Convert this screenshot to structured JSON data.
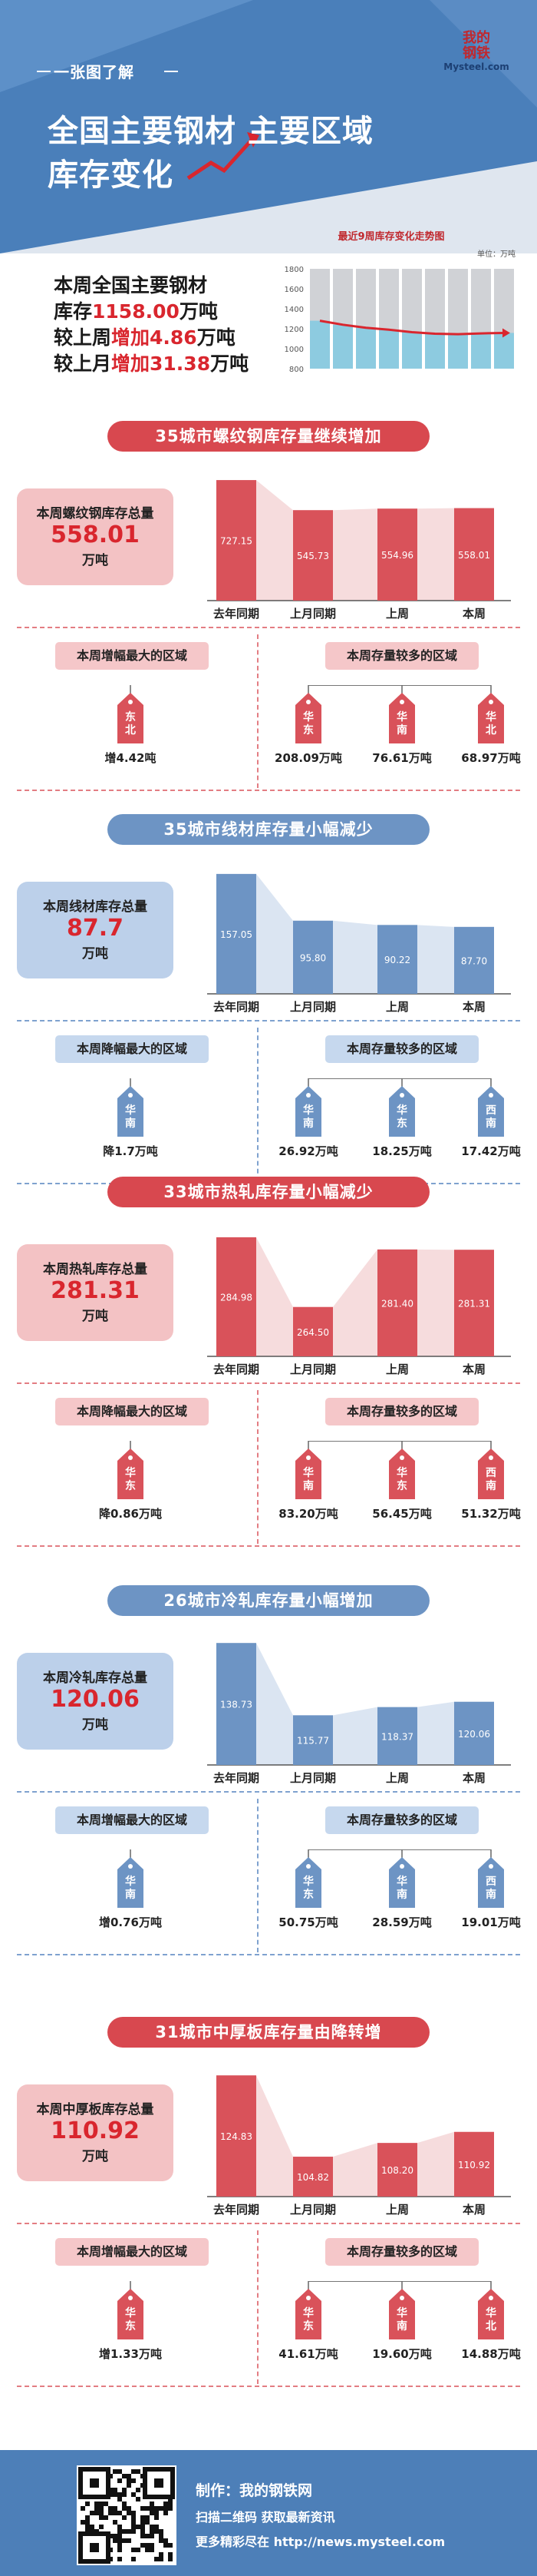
{
  "header": {
    "kicker": "一张图了解",
    "title_line1": "全国主要钢材 主要区域",
    "title_line2": "库存变化",
    "logo_cn_1": "我的",
    "logo_cn_2": "钢铁",
    "logo_en": "Mysteel.com"
  },
  "summary": {
    "line1": "本周全国主要钢材",
    "line2_prefix": "库存",
    "line2_value": "1158.00",
    "line2_suffix": "万吨",
    "line3_prefix": "较上周",
    "line3_value": "增加4.86",
    "line3_suffix": "万吨",
    "line4_prefix": "较上月",
    "line4_value": "增加31.38",
    "line4_suffix": "万吨"
  },
  "mini_chart": {
    "title": "最近9周库存变化走势图",
    "unit": "单位：万吨",
    "chart_data": {
      "type": "bar",
      "title": "最近9周库存变化走势图",
      "ylabel": "单位：万吨",
      "ylim": [
        800,
        1800
      ],
      "yticks": [
        "1800",
        "1600",
        "1400",
        "1200",
        "1000",
        "800"
      ],
      "values": [
        1280,
        1240,
        1210,
        1190,
        1165,
        1150,
        1145,
        1153,
        1158
      ],
      "line_values": [
        1280,
        1240,
        1210,
        1190,
        1165,
        1150,
        1145,
        1153,
        1158
      ],
      "colors": {
        "bar": "#8dcbe0",
        "bar_bg": "#d0d2d6",
        "line": "#d9262e"
      }
    }
  },
  "sections": [
    {
      "theme": "red",
      "title": "35城市螺纹钢库存量继续增加",
      "total_label": "本周螺纹钢库存总量",
      "total_value": "558.01",
      "total_unit": "万吨",
      "chart_data": {
        "type": "bar",
        "categories": [
          "去年同期",
          "上月同期",
          "上周",
          "本周"
        ],
        "values": [
          727.15,
          545.73,
          554.96,
          558.01
        ],
        "labels": [
          "727.15",
          "545.73",
          "554.96",
          "558.01"
        ],
        "ylim": [
          0,
          760
        ],
        "colors": {
          "bar": "#d9525a",
          "band": "#f6dcdd"
        }
      },
      "left_title": "本周增幅最大的区域",
      "left_tag": {
        "text1": "东",
        "text2": "北",
        "value": "增4.42吨"
      },
      "right_title": "本周存量较多的区域",
      "right_tags": [
        {
          "text1": "华",
          "text2": "东",
          "value": "208.09万吨"
        },
        {
          "text1": "华",
          "text2": "南",
          "value": "76.61万吨"
        },
        {
          "text1": "华",
          "text2": "北",
          "value": "68.97万吨"
        }
      ]
    },
    {
      "theme": "blue",
      "title": "35城市线材库存量小幅减少",
      "total_label": "本周线材库存总量",
      "total_value": "87.7",
      "total_unit": "万吨",
      "chart_data": {
        "type": "bar",
        "categories": [
          "去年同期",
          "上月同期",
          "上周",
          "本周"
        ],
        "values": [
          157.05,
          95.8,
          90.22,
          87.7
        ],
        "labels": [
          "157.05",
          "95.80",
          "90.22",
          "87.70"
        ],
        "ylim": [
          0,
          165
        ],
        "colors": {
          "bar": "#6d94c4",
          "band": "#dbe5f2"
        }
      },
      "left_title": "本周降幅最大的区域",
      "left_tag": {
        "text1": "华",
        "text2": "南",
        "value": "降1.7万吨"
      },
      "right_title": "本周存量较多的区域",
      "right_tags": [
        {
          "text1": "华",
          "text2": "南",
          "value": "26.92万吨"
        },
        {
          "text1": "华",
          "text2": "东",
          "value": "18.25万吨"
        },
        {
          "text1": "西",
          "text2": "南",
          "value": "17.42万吨"
        }
      ]
    },
    {
      "theme": "red",
      "title": "33城市热轧库存量小幅减少",
      "total_label": "本周热轧库存总量",
      "total_value": "281.31",
      "total_unit": "万吨",
      "chart_data": {
        "type": "bar",
        "categories": [
          "去年同期",
          "上月同期",
          "上周",
          "本周"
        ],
        "values": [
          284.98,
          264.5,
          281.4,
          281.31
        ],
        "labels": [
          "284.98",
          "264.50",
          "281.40",
          "281.31"
        ],
        "ylim": [
          250,
          287
        ],
        "colors": {
          "bar": "#d9525a",
          "band": "#f6dcdd"
        }
      },
      "left_title": "本周降幅最大的区域",
      "left_tag": {
        "text1": "华",
        "text2": "东",
        "value": "降0.86万吨"
      },
      "right_title": "本周存量较多的区域",
      "right_tags": [
        {
          "text1": "华",
          "text2": "南",
          "value": "83.20万吨"
        },
        {
          "text1": "华",
          "text2": "东",
          "value": "56.45万吨"
        },
        {
          "text1": "西",
          "text2": "南",
          "value": "51.32万吨"
        }
      ]
    },
    {
      "theme": "blue",
      "title": "26城市冷轧库存量小幅增加",
      "total_label": "本周冷轧库存总量",
      "total_value": "120.06",
      "total_unit": "万吨",
      "chart_data": {
        "type": "bar",
        "categories": [
          "去年同期",
          "上月同期",
          "上周",
          "本周"
        ],
        "values": [
          138.73,
          115.77,
          118.37,
          120.06
        ],
        "labels": [
          "138.73",
          "115.77",
          "118.37",
          "120.06"
        ],
        "ylim": [
          100,
          140
        ],
        "colors": {
          "bar": "#6d94c4",
          "band": "#dbe5f2"
        }
      },
      "left_title": "本周增幅最大的区域",
      "left_tag": {
        "text1": "华",
        "text2": "南",
        "value": "增0.76万吨"
      },
      "right_title": "本周存量较多的区域",
      "right_tags": [
        {
          "text1": "华",
          "text2": "东",
          "value": "50.75万吨"
        },
        {
          "text1": "华",
          "text2": "南",
          "value": "28.59万吨"
        },
        {
          "text1": "西",
          "text2": "南",
          "value": "19.01万吨"
        }
      ]
    },
    {
      "theme": "red",
      "title": "31城市中厚板库存量由降转增",
      "total_label": "本周中厚板库存总量",
      "total_value": "110.92",
      "total_unit": "万吨",
      "chart_data": {
        "type": "bar",
        "categories": [
          "去年同期",
          "上月同期",
          "上周",
          "本周"
        ],
        "values": [
          124.83,
          104.82,
          108.2,
          110.92
        ],
        "labels": [
          "124.83",
          "104.82",
          "108.20",
          "110.92"
        ],
        "ylim": [
          95,
          126
        ],
        "colors": {
          "bar": "#d9525a",
          "band": "#f6dcdd"
        }
      },
      "left_title": "本周增幅最大的区域",
      "left_tag": {
        "text1": "华",
        "text2": "东",
        "value": "增1.33万吨"
      },
      "right_title": "本周存量较多的区域",
      "right_tags": [
        {
          "text1": "华",
          "text2": "东",
          "value": "41.61万吨"
        },
        {
          "text1": "华",
          "text2": "南",
          "value": "19.60万吨"
        },
        {
          "text1": "华",
          "text2": "北",
          "value": "14.88万吨"
        }
      ]
    }
  ],
  "footer": {
    "maker": "制作：我的钢铁网",
    "scan": "扫描二维码 获取最新资讯",
    "more": "更多精彩尽在 http://news.mysteel.com"
  }
}
